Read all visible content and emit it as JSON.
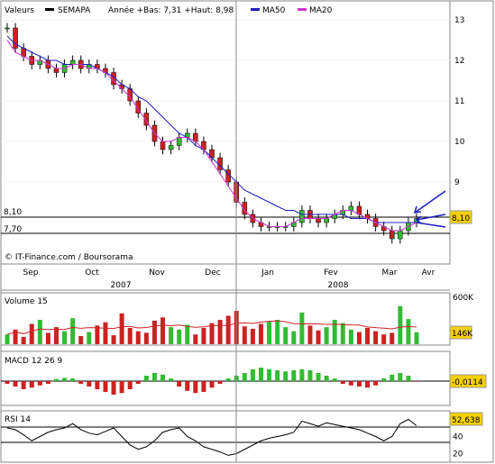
{
  "header": {
    "valeurs_label": "Valeurs",
    "symbol": "SEMAPA",
    "range_text": "Année +Bas: 7,31 +Haut: 8,98",
    "ma50_label": "MA50",
    "ma20_label": "MA20"
  },
  "colors": {
    "price_series": "#000000",
    "ma50": "#1f1fbf",
    "ma20": "#cc33cc",
    "volume_up": "#33bb33",
    "volume_down": "#cc2222",
    "arrow": "#1f1fbf",
    "support_line": "#000000"
  },
  "main_panel": {
    "level_8_10_label": "8,10",
    "level_7_70_label": "7,70",
    "current_price_badge": "8,10",
    "source_credit": "© IT-Finance.com / Boursorama",
    "y_ticks": [
      "13",
      "12",
      "11",
      "10",
      "9"
    ],
    "month_labels": [
      "Sep",
      "Oct",
      "Nov",
      "Dec",
      "Jan",
      "Fev",
      "Mar",
      "Avr"
    ],
    "year_labels": [
      "2007",
      "2008"
    ]
  },
  "volume_panel": {
    "title": "Volume 15",
    "y_top_label": "600K",
    "value_badge": "146K"
  },
  "macd_panel": {
    "title": "MACD 12 26 9",
    "value_badge": "-0,0114"
  },
  "rsi_panel": {
    "title": "RSI 14",
    "value_badge": "52,638",
    "y_ticks": [
      "60",
      "40",
      "20"
    ]
  },
  "chart_data": [
    {
      "type": "candlestick",
      "title": "SEMAPA",
      "y_axis": {
        "min": 7.0,
        "max": 13.0,
        "ticks": [
          9,
          10,
          11,
          12,
          13
        ]
      },
      "x_labels": [
        "Sep",
        "Oct",
        "Nov",
        "Dec",
        "Jan",
        "Fev",
        "Mar",
        "Avr"
      ],
      "horizontal_levels": [
        8.1,
        7.7
      ],
      "close_series": [
        12.8,
        12.3,
        12.1,
        11.9,
        12.0,
        11.8,
        11.7,
        11.9,
        12.0,
        11.8,
        11.9,
        11.8,
        11.7,
        11.4,
        11.3,
        11.0,
        10.7,
        10.4,
        10.0,
        9.8,
        9.9,
        10.1,
        10.2,
        10.0,
        9.8,
        9.6,
        9.3,
        9.0,
        8.5,
        8.2,
        8.0,
        7.9,
        7.9,
        7.9,
        7.9,
        8.0,
        8.3,
        8.1,
        8.0,
        8.1,
        8.2,
        8.3,
        8.4,
        8.2,
        8.1,
        7.9,
        7.8,
        7.6,
        7.8,
        8.0,
        8.1
      ],
      "ma50": [
        12.6,
        12.4,
        12.3,
        12.2,
        12.1,
        12.0,
        12.0,
        11.9,
        11.9,
        11.9,
        11.9,
        11.8,
        11.7,
        11.6,
        11.4,
        11.3,
        11.1,
        11.0,
        10.8,
        10.6,
        10.4,
        10.2,
        10.1,
        9.9,
        9.8,
        9.6,
        9.4,
        9.2,
        9.0,
        8.8,
        8.7,
        8.6,
        8.5,
        8.4,
        8.3,
        8.3,
        8.2,
        8.2,
        8.2,
        8.2,
        8.2,
        8.2,
        8.1,
        8.1,
        8.1,
        8.0,
        8.0,
        8.0,
        8.0,
        8.0,
        8.0
      ],
      "ma20": [
        12.5,
        12.2,
        12.1,
        12.0,
        12.0,
        11.9,
        11.8,
        11.8,
        11.9,
        11.9,
        11.8,
        11.8,
        11.7,
        11.5,
        11.3,
        11.1,
        10.8,
        10.5,
        10.2,
        10.0,
        10.0,
        10.1,
        10.1,
        10.0,
        9.8,
        9.5,
        9.2,
        8.9,
        8.6,
        8.3,
        8.1,
        8.0,
        7.9,
        7.9,
        7.9,
        8.0,
        8.1,
        8.1,
        8.1,
        8.1,
        8.2,
        8.3,
        8.3,
        8.2,
        8.1,
        8.0,
        7.9,
        7.8,
        7.8,
        7.9,
        8.0
      ],
      "series_names": [
        "MA50",
        "MA20"
      ]
    },
    {
      "type": "bar",
      "title": "Volume 15",
      "y_axis": {
        "min": 0,
        "max": 600000
      },
      "values": [
        120,
        180,
        90,
        250,
        300,
        140,
        210,
        160,
        320,
        100,
        150,
        230,
        270,
        110,
        380,
        200,
        160,
        140,
        290,
        330,
        210,
        180,
        240,
        120,
        200,
        260,
        300,
        350,
        410,
        220,
        190,
        250,
        280,
        300,
        210,
        160,
        390,
        230,
        170,
        210,
        300,
        260,
        180,
        150,
        200,
        160,
        120,
        140,
        470,
        310,
        146
      ]
    },
    {
      "type": "bar",
      "title": "MACD 12 26 9",
      "y_axis": {
        "min": -0.4,
        "max": 0.4
      },
      "values": [
        -0.05,
        -0.1,
        -0.15,
        -0.12,
        -0.08,
        -0.05,
        0.04,
        0.06,
        0.05,
        -0.05,
        -0.1,
        -0.15,
        -0.2,
        -0.25,
        -0.22,
        -0.15,
        -0.05,
        0.1,
        0.15,
        0.12,
        0.05,
        -0.1,
        -0.18,
        -0.22,
        -0.2,
        -0.12,
        -0.05,
        0.05,
        0.1,
        0.15,
        0.22,
        0.25,
        0.22,
        0.2,
        0.18,
        0.2,
        0.22,
        0.2,
        0.15,
        0.1,
        0.05,
        -0.05,
        -0.08,
        -0.1,
        -0.12,
        -0.08,
        0.05,
        0.12,
        0.15,
        0.1,
        -0.0114
      ]
    },
    {
      "type": "line",
      "title": "RSI 14",
      "y_axis": {
        "min": 10,
        "max": 70,
        "ticks": [
          60,
          40,
          20
        ]
      },
      "values": [
        50,
        48,
        42,
        35,
        40,
        45,
        48,
        50,
        55,
        48,
        44,
        42,
        46,
        50,
        40,
        30,
        25,
        28,
        35,
        45,
        48,
        50,
        40,
        35,
        28,
        25,
        22,
        18,
        20,
        25,
        30,
        35,
        38,
        40,
        42,
        45,
        58,
        55,
        52,
        56,
        54,
        52,
        50,
        48,
        44,
        40,
        35,
        40,
        55,
        60,
        52.638
      ]
    }
  ]
}
